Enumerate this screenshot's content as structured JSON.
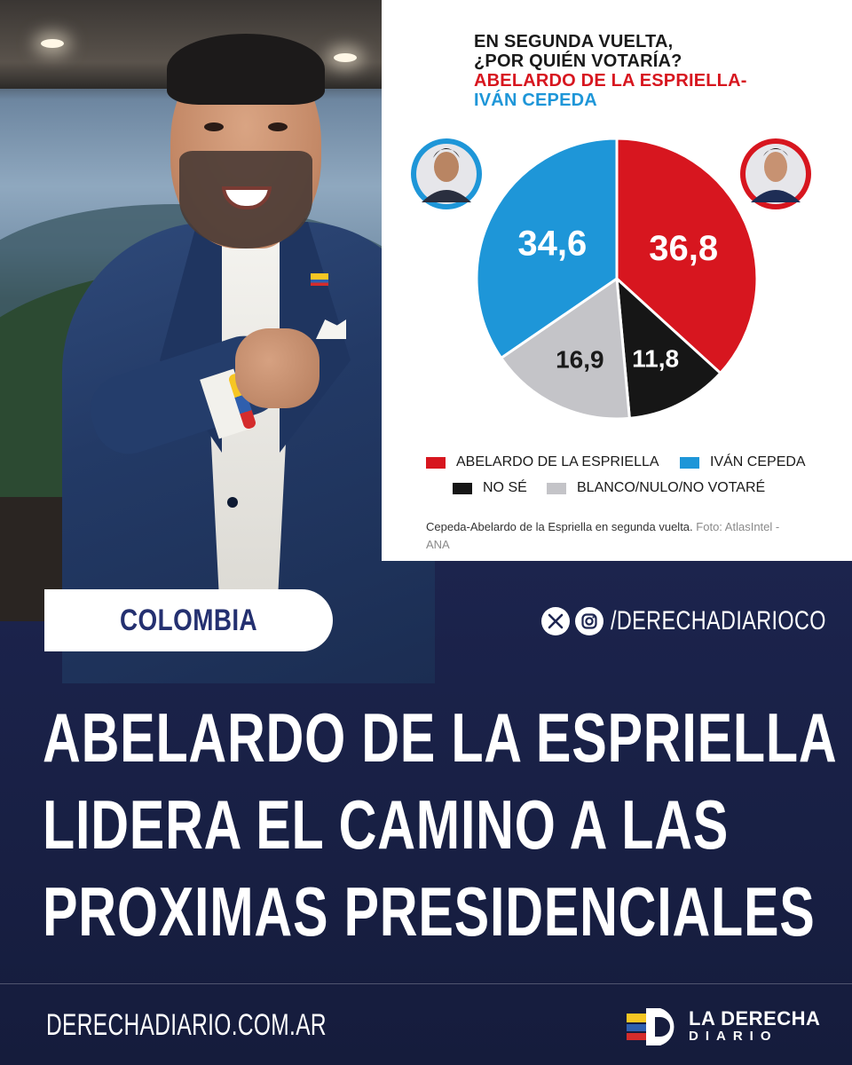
{
  "chart": {
    "title_line1": "EN SEGUNDA VUELTA,",
    "title_line2": "¿POR QUIÉN VOTARÍA?",
    "title_line3": "ABELARDO DE LA ESPRIELLA-",
    "title_line4": "IVÁN CEPEDA",
    "caption_text": "Cepeda-Abelardo de la Espriella en segunda vuelta.",
    "caption_source_1": "Foto: AtlasIntel -",
    "caption_source_2": "ANA"
  },
  "chart_data": {
    "type": "pie",
    "categories": [
      "ABELARDO DE LA ESPRIELLA",
      "NO SÉ",
      "BLANCO/NULO/NO VOTARÉ",
      "IVÁN CEPEDA"
    ],
    "values": [
      36.8,
      11.8,
      16.9,
      34.6
    ],
    "value_labels": [
      "36,8",
      "11,8",
      "16,9",
      "34,6"
    ],
    "colors": [
      "#d7161f",
      "#161616",
      "#c4c4c8",
      "#1e96d8"
    ],
    "legend": [
      {
        "label": "ABELARDO DE LA ESPRIELLA",
        "color": "#d7161f"
      },
      {
        "label": "IVÁN CEPEDA",
        "color": "#1e96d8"
      },
      {
        "label": "NO SÉ",
        "color": "#161616"
      },
      {
        "label": "BLANCO/NULO/NO VOTARÉ",
        "color": "#c4c4c8"
      }
    ],
    "legend_position": "bottom"
  },
  "tag": "COLOMBIA",
  "social": {
    "handle": "/DERECHADIARIOCO",
    "icons": [
      "x-icon",
      "instagram-icon"
    ]
  },
  "headline": {
    "line1": "ABELARDO DE LA ESPRIELLA",
    "line2": "LIDERA EL CAMINO A LAS",
    "line3": "PROXIMAS PRESIDENCIALES"
  },
  "footer": {
    "url": "DERECHADIARIO.COM.AR",
    "brand_line1": "LA DERECHA",
    "brand_line2": "DIARIO",
    "brand_colors": [
      "#f6c623",
      "#2f5fae",
      "#d42c2c"
    ]
  },
  "colors": {
    "background": "#1d2550",
    "pill_text": "#243070",
    "red": "#d7161f",
    "blue": "#1e96d8"
  }
}
